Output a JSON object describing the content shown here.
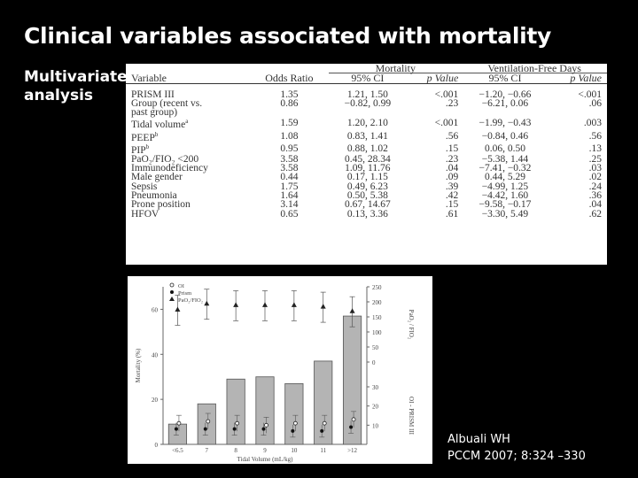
{
  "slide": {
    "title": "Clinical variables associated with mortality",
    "subtitle_line1": "Multivariate",
    "subtitle_line2": "analysis",
    "citation_line1": "Albuali WH",
    "citation_line2": "PCCM 2007; 8:324 –330"
  },
  "table": {
    "group_headers": {
      "mortality": "Mortality",
      "vfd": "Ventilation-Free Days"
    },
    "columns": [
      "Variable",
      "Odds Ratio",
      "95% CI",
      "p Value",
      "95% CI",
      "p Value"
    ],
    "rows": [
      {
        "variable": "PRISM III",
        "odds_ratio": "1.35",
        "mort_ci": "1.21, 1.50",
        "mort_p": "<.001",
        "vfd_ci": "−1.20, −0.66",
        "vfd_p": "<.001"
      },
      {
        "variable": "Group (recent vs.",
        "odds_ratio": "0.86",
        "mort_ci": "−0.82, 0.99",
        "mort_p": ".23",
        "vfd_ci": "−6.21, 0.06",
        "vfd_p": ".06"
      },
      {
        "variable": "past group)",
        "odds_ratio": "",
        "mort_ci": "",
        "mort_p": "",
        "vfd_ci": "",
        "vfd_p": "",
        "indent": true
      },
      {
        "variable": "Tidal volume",
        "sup": "a",
        "odds_ratio": "1.59",
        "mort_ci": "1.20, 2.10",
        "mort_p": "<.001",
        "vfd_ci": "−1.99, −0.43",
        "vfd_p": ".003"
      },
      {
        "variable": "PEEP",
        "sup": "b",
        "odds_ratio": "1.08",
        "mort_ci": "0.83, 1.41",
        "mort_p": ".56",
        "vfd_ci": "−0.84, 0.46",
        "vfd_p": ".56"
      },
      {
        "variable": "PIP",
        "sup": "b",
        "odds_ratio": "0.95",
        "mort_ci": "0.88, 1.02",
        "mort_p": ".15",
        "vfd_ci": "0.06, 0.50",
        "vfd_p": ".13"
      },
      {
        "variable": "PaO₂/FIO₂ <200",
        "odds_ratio": "3.58",
        "mort_ci": "0.45, 28.34",
        "mort_p": ".23",
        "vfd_ci": "−5.38, 1.44",
        "vfd_p": ".25"
      },
      {
        "variable": "Immunodeficiency",
        "odds_ratio": "3.58",
        "mort_ci": "1.09, 11.76",
        "mort_p": ".04",
        "vfd_ci": "−7.41, −0.32",
        "vfd_p": ".03"
      },
      {
        "variable": "Male gender",
        "odds_ratio": "0.44",
        "mort_ci": "0.17, 1.15",
        "mort_p": ".09",
        "vfd_ci": "0.44, 5.29",
        "vfd_p": ".02"
      },
      {
        "variable": "Sepsis",
        "odds_ratio": "1.75",
        "mort_ci": "0.49, 6.23",
        "mort_p": ".39",
        "vfd_ci": "−4.99, 1.25",
        "vfd_p": ".24"
      },
      {
        "variable": "Pneumonia",
        "odds_ratio": "1.64",
        "mort_ci": "0.50, 5.38",
        "mort_p": ".42",
        "vfd_ci": "−4.42, 1.60",
        "vfd_p": ".36"
      },
      {
        "variable": "Prone position",
        "odds_ratio": "3.14",
        "mort_ci": "0.67, 14.67",
        "mort_p": ".15",
        "vfd_ci": "−9.58, −0.17",
        "vfd_p": ".04"
      },
      {
        "variable": "HFOV",
        "odds_ratio": "0.65",
        "mort_ci": "0.13, 3.36",
        "mort_p": ".61",
        "vfd_ci": "−3.30, 5.49",
        "vfd_p": ".62"
      }
    ]
  },
  "chart_data": {
    "type": "bar",
    "title": "",
    "xlabel": "Tidal Volume (mL/kg)",
    "ylabel": "Mortality (%)",
    "categories": [
      "<6.5",
      "7",
      "8",
      "9",
      "10",
      "11",
      ">12"
    ],
    "ylim": [
      0,
      70
    ],
    "yticks": [
      "0",
      "20",
      "40",
      "60"
    ],
    "series": [
      {
        "name": "Mortality",
        "kind": "bar",
        "values": [
          9,
          18,
          29,
          30,
          27,
          37,
          57
        ]
      },
      {
        "name": "OI",
        "kind": "marker",
        "marker": "open-circle",
        "values": [
          11,
          12,
          11,
          10,
          11,
          11,
          13
        ]
      },
      {
        "name": "Prism",
        "kind": "marker",
        "marker": "filled-circle",
        "values": [
          8,
          8,
          8,
          8,
          7,
          7,
          9
        ]
      },
      {
        "name": "PaO₂/FIO₂",
        "kind": "marker",
        "marker": "triangle",
        "axis": "right-upper",
        "values": [
          175,
          195,
          190,
          190,
          190,
          185,
          170
        ]
      }
    ],
    "legend": [
      "OI",
      "Prism",
      "PaO₂/FIO₂"
    ],
    "legend_position": "top-left",
    "right_axis_upper": {
      "label": "PaO₂ / FIO₂",
      "ticks": [
        "0",
        "50",
        "100",
        "150",
        "200",
        "250"
      ],
      "range": [
        0,
        250
      ]
    },
    "right_axis_lower": {
      "label": "OI - PRISM III",
      "ticks": [
        "10",
        "20",
        "30"
      ],
      "range": [
        0,
        30
      ]
    }
  }
}
